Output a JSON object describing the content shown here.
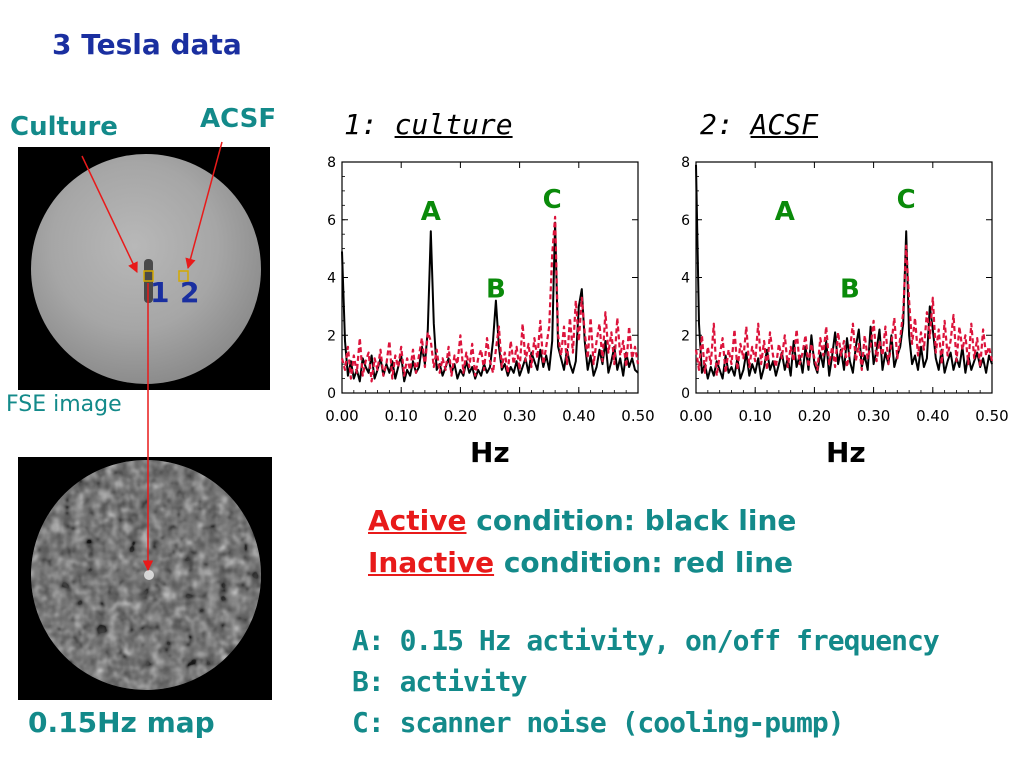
{
  "title": "3 Tesla data",
  "labels": {
    "culture": "Culture",
    "acsf": "ACSF",
    "fse_image": "FSE image",
    "map": "0.15Hz map",
    "roi_1": "1",
    "roi_2": "2"
  },
  "legend": {
    "active_key": "Active",
    "active_rest": " condition: black line",
    "inactive_key": "Inactive",
    "inactive_rest": " condition: red line"
  },
  "notes": [
    "A: 0.15 Hz activity, on/off frequency",
    "B: activity",
    "C: scanner noise (cooling-pump)"
  ],
  "colors": {
    "title_blue": "#1a2fa0",
    "text_teal": "#138a8a",
    "accent_red": "#e81a1a",
    "peak_green": "#0a8a0a",
    "active_line": "#000000",
    "inactive_line": "#dc143c",
    "roi_box": "#d4a900"
  },
  "chart_data": [
    {
      "type": "line",
      "title_prefix": "1: ",
      "title": "culture",
      "xlabel": "Hz",
      "xlim": [
        0,
        0.5
      ],
      "ylim": [
        0,
        8
      ],
      "xticks": [
        "0.00",
        "0.10",
        "0.20",
        "0.30",
        "0.40",
        "0.50"
      ],
      "yticks": [
        "0",
        "2",
        "4",
        "6",
        "8"
      ],
      "annotations": [
        {
          "text": "A",
          "x": 0.15,
          "y": 6.0
        },
        {
          "text": "B",
          "x": 0.26,
          "y": 3.3
        },
        {
          "text": "C",
          "x": 0.355,
          "y": 6.4
        }
      ],
      "series": [
        {
          "style": "solid",
          "x": [
            0,
            0.005,
            0.01,
            0.015,
            0.02,
            0.025,
            0.03,
            0.035,
            0.04,
            0.045,
            0.05,
            0.055,
            0.06,
            0.065,
            0.07,
            0.075,
            0.08,
            0.085,
            0.09,
            0.095,
            0.1,
            0.105,
            0.11,
            0.115,
            0.12,
            0.125,
            0.13,
            0.135,
            0.14,
            0.145,
            0.15,
            0.155,
            0.16,
            0.165,
            0.17,
            0.175,
            0.18,
            0.185,
            0.19,
            0.195,
            0.2,
            0.205,
            0.21,
            0.215,
            0.22,
            0.225,
            0.23,
            0.235,
            0.24,
            0.245,
            0.25,
            0.255,
            0.26,
            0.265,
            0.27,
            0.275,
            0.28,
            0.285,
            0.29,
            0.295,
            0.3,
            0.305,
            0.31,
            0.315,
            0.32,
            0.325,
            0.33,
            0.335,
            0.34,
            0.345,
            0.35,
            0.355,
            0.36,
            0.365,
            0.37,
            0.375,
            0.38,
            0.385,
            0.39,
            0.395,
            0.4,
            0.405,
            0.41,
            0.415,
            0.42,
            0.425,
            0.43,
            0.435,
            0.44,
            0.445,
            0.45,
            0.455,
            0.46,
            0.465,
            0.47,
            0.475,
            0.48,
            0.485,
            0.49,
            0.495,
            0.5
          ],
          "y": [
            4.9,
            1.8,
            0.6,
            1.1,
            0.5,
            0.8,
            0.4,
            1.2,
            0.9,
            0.7,
            1.3,
            0.5,
            0.8,
            1.2,
            0.6,
            1.0,
            0.7,
            1.1,
            0.5,
            0.9,
            1.3,
            0.4,
            0.8,
            0.6,
            1.1,
            0.7,
            0.9,
            1.6,
            1.0,
            2.2,
            5.6,
            2.4,
            0.8,
            1.0,
            0.6,
            0.9,
            1.2,
            0.7,
            1.0,
            0.5,
            0.8,
            0.6,
            1.1,
            0.7,
            0.9,
            0.5,
            0.8,
            0.6,
            1.0,
            0.7,
            0.9,
            1.8,
            3.2,
            1.6,
            0.8,
            1.0,
            0.6,
            0.9,
            0.7,
            1.1,
            0.6,
            0.9,
            1.2,
            0.7,
            1.4,
            1.1,
            0.8,
            1.5,
            0.9,
            1.3,
            0.8,
            1.8,
            5.9,
            1.6,
            1.2,
            0.8,
            1.5,
            1.0,
            0.7,
            1.1,
            3.0,
            3.6,
            1.8,
            0.8,
            1.3,
            0.6,
            0.9,
            1.5,
            1.0,
            1.8,
            0.7,
            1.1,
            1.6,
            0.8,
            1.2,
            0.6,
            1.4,
            0.9,
            1.2,
            0.8,
            0.7
          ]
        },
        {
          "style": "dashed",
          "x": [
            0,
            0.005,
            0.01,
            0.015,
            0.02,
            0.025,
            0.03,
            0.035,
            0.04,
            0.045,
            0.05,
            0.055,
            0.06,
            0.065,
            0.07,
            0.075,
            0.08,
            0.085,
            0.09,
            0.095,
            0.1,
            0.105,
            0.11,
            0.115,
            0.12,
            0.125,
            0.13,
            0.135,
            0.14,
            0.145,
            0.15,
            0.155,
            0.16,
            0.165,
            0.17,
            0.175,
            0.18,
            0.185,
            0.19,
            0.195,
            0.2,
            0.205,
            0.21,
            0.215,
            0.22,
            0.225,
            0.23,
            0.235,
            0.24,
            0.245,
            0.25,
            0.255,
            0.26,
            0.265,
            0.27,
            0.275,
            0.28,
            0.285,
            0.29,
            0.295,
            0.3,
            0.305,
            0.31,
            0.315,
            0.32,
            0.325,
            0.33,
            0.335,
            0.34,
            0.345,
            0.35,
            0.355,
            0.36,
            0.365,
            0.37,
            0.375,
            0.38,
            0.385,
            0.39,
            0.395,
            0.4,
            0.405,
            0.41,
            0.415,
            0.42,
            0.425,
            0.43,
            0.435,
            0.44,
            0.445,
            0.45,
            0.455,
            0.46,
            0.465,
            0.47,
            0.475,
            0.48,
            0.485,
            0.49,
            0.495,
            0.5
          ],
          "y": [
            1.2,
            0.8,
            1.6,
            0.5,
            1.3,
            0.7,
            1.9,
            0.6,
            1.1,
            1.4,
            0.4,
            1.2,
            0.8,
            1.5,
            0.6,
            1.0,
            1.8,
            0.5,
            1.3,
            0.9,
            1.6,
            0.6,
            1.2,
            0.8,
            1.5,
            0.7,
            1.3,
            1.9,
            0.9,
            2.1,
            1.8,
            0.9,
            1.5,
            0.7,
            1.2,
            0.8,
            1.6,
            0.6,
            1.3,
            1.0,
            2.0,
            0.7,
            1.4,
            0.9,
            1.7,
            0.6,
            1.2,
            1.5,
            0.8,
            1.9,
            1.1,
            0.7,
            1.5,
            2.3,
            0.9,
            1.4,
            0.7,
            1.8,
            1.0,
            1.6,
            0.8,
            2.4,
            1.1,
            1.7,
            0.9,
            1.9,
            1.2,
            2.5,
            1.0,
            1.6,
            2.3,
            4.8,
            6.1,
            2.0,
            1.3,
            2.3,
            1.0,
            2.6,
            1.4,
            3.2,
            1.8,
            3.3,
            2.1,
            1.2,
            2.6,
            1.0,
            1.8,
            2.4,
            1.1,
            2.8,
            1.4,
            2.1,
            1.0,
            2.6,
            1.3,
            1.8,
            0.9,
            2.3,
            1.2,
            1.6,
            1.0
          ]
        }
      ]
    },
    {
      "type": "line",
      "title_prefix": "2: ",
      "title": "ACSF",
      "xlabel": "Hz",
      "xlim": [
        0,
        0.5
      ],
      "ylim": [
        0,
        8
      ],
      "xticks": [
        "0.00",
        "0.10",
        "0.20",
        "0.30",
        "0.40",
        "0.50"
      ],
      "yticks": [
        "0",
        "2",
        "4",
        "6",
        "8"
      ],
      "annotations": [
        {
          "text": "A",
          "x": 0.15,
          "y": 6.0
        },
        {
          "text": "B",
          "x": 0.26,
          "y": 3.3
        },
        {
          "text": "C",
          "x": 0.355,
          "y": 6.4
        }
      ],
      "series": [
        {
          "style": "solid",
          "x": [
            0,
            0.005,
            0.01,
            0.015,
            0.02,
            0.025,
            0.03,
            0.035,
            0.04,
            0.045,
            0.05,
            0.055,
            0.06,
            0.065,
            0.07,
            0.075,
            0.08,
            0.085,
            0.09,
            0.095,
            0.1,
            0.105,
            0.11,
            0.115,
            0.12,
            0.125,
            0.13,
            0.135,
            0.14,
            0.145,
            0.15,
            0.155,
            0.16,
            0.165,
            0.17,
            0.175,
            0.18,
            0.185,
            0.19,
            0.195,
            0.2,
            0.205,
            0.21,
            0.215,
            0.22,
            0.225,
            0.23,
            0.235,
            0.24,
            0.245,
            0.25,
            0.255,
            0.26,
            0.265,
            0.27,
            0.275,
            0.28,
            0.285,
            0.29,
            0.295,
            0.3,
            0.305,
            0.31,
            0.315,
            0.32,
            0.325,
            0.33,
            0.335,
            0.34,
            0.345,
            0.35,
            0.355,
            0.36,
            0.365,
            0.37,
            0.375,
            0.38,
            0.385,
            0.39,
            0.395,
            0.4,
            0.405,
            0.41,
            0.415,
            0.42,
            0.425,
            0.43,
            0.435,
            0.44,
            0.445,
            0.45,
            0.455,
            0.46,
            0.465,
            0.47,
            0.475,
            0.48,
            0.485,
            0.49,
            0.495,
            0.5
          ],
          "y": [
            7.9,
            2.4,
            0.7,
            1.0,
            0.5,
            0.9,
            0.6,
            1.1,
            0.8,
            0.5,
            1.3,
            0.7,
            0.9,
            0.6,
            1.2,
            0.5,
            0.8,
            1.4,
            0.6,
            1.0,
            0.7,
            1.2,
            0.5,
            0.9,
            1.5,
            0.8,
            1.1,
            0.6,
            1.0,
            1.4,
            0.8,
            1.2,
            0.6,
            1.8,
            0.9,
            1.3,
            0.7,
            1.6,
            0.8,
            2.0,
            1.0,
            0.7,
            1.4,
            0.9,
            1.8,
            0.6,
            1.3,
            2.1,
            1.0,
            1.5,
            0.8,
            1.9,
            1.1,
            0.7,
            1.6,
            2.2,
            0.9,
            1.3,
            0.8,
            2.3,
            1.0,
            1.5,
            2.2,
            0.8,
            1.4,
            1.0,
            2.0,
            0.9,
            1.3,
            1.6,
            2.4,
            5.6,
            2.0,
            1.0,
            1.3,
            0.8,
            1.6,
            0.9,
            1.2,
            3.0,
            2.2,
            1.2,
            0.8,
            1.5,
            0.7,
            1.1,
            1.4,
            0.8,
            1.2,
            0.9,
            1.6,
            0.7,
            1.3,
            0.8,
            1.1,
            1.4,
            0.9,
            1.2,
            0.7,
            1.3,
            1.0
          ]
        },
        {
          "style": "dashed",
          "x": [
            0,
            0.005,
            0.01,
            0.015,
            0.02,
            0.025,
            0.03,
            0.035,
            0.04,
            0.045,
            0.05,
            0.055,
            0.06,
            0.065,
            0.07,
            0.075,
            0.08,
            0.085,
            0.09,
            0.095,
            0.1,
            0.105,
            0.11,
            0.115,
            0.12,
            0.125,
            0.13,
            0.135,
            0.14,
            0.145,
            0.15,
            0.155,
            0.16,
            0.165,
            0.17,
            0.175,
            0.18,
            0.185,
            0.19,
            0.195,
            0.2,
            0.205,
            0.21,
            0.215,
            0.22,
            0.225,
            0.23,
            0.235,
            0.24,
            0.245,
            0.25,
            0.255,
            0.26,
            0.265,
            0.27,
            0.275,
            0.28,
            0.285,
            0.29,
            0.295,
            0.3,
            0.305,
            0.31,
            0.315,
            0.32,
            0.325,
            0.33,
            0.335,
            0.34,
            0.345,
            0.35,
            0.355,
            0.36,
            0.365,
            0.37,
            0.375,
            0.38,
            0.385,
            0.39,
            0.395,
            0.4,
            0.405,
            0.41,
            0.415,
            0.42,
            0.425,
            0.43,
            0.435,
            0.44,
            0.445,
            0.45,
            0.455,
            0.46,
            0.465,
            0.47,
            0.475,
            0.48,
            0.485,
            0.49,
            0.495,
            0.5
          ],
          "y": [
            1.5,
            0.8,
            2.0,
            0.7,
            1.6,
            1.0,
            2.4,
            0.6,
            1.3,
            1.9,
            0.7,
            1.5,
            1.0,
            2.2,
            0.8,
            1.7,
            1.2,
            2.3,
            0.9,
            1.6,
            1.1,
            2.4,
            1.0,
            1.8,
            0.8,
            2.1,
            1.3,
            0.9,
            1.7,
            1.2,
            2.0,
            0.9,
            1.6,
            1.1,
            2.2,
            1.0,
            1.4,
            2.0,
            0.9,
            1.7,
            1.2,
            0.8,
            1.9,
            1.3,
            2.3,
            1.0,
            1.6,
            0.9,
            2.1,
            1.3,
            1.8,
            0.9,
            1.5,
            2.4,
            1.1,
            1.7,
            0.8,
            2.0,
            1.2,
            1.6,
            2.5,
            1.1,
            1.8,
            1.3,
            2.3,
            1.0,
            1.7,
            2.6,
            1.2,
            1.9,
            2.8,
            5.1,
            3.2,
            1.7,
            2.6,
            1.3,
            2.1,
            1.5,
            2.8,
            1.9,
            3.3,
            1.4,
            2.2,
            1.0,
            2.5,
            1.3,
            1.8,
            2.7,
            1.1,
            2.3,
            1.5,
            2.0,
            1.0,
            2.4,
            1.2,
            1.9,
            0.9,
            2.2,
            1.3,
            1.6,
            1.1
          ]
        }
      ]
    }
  ]
}
